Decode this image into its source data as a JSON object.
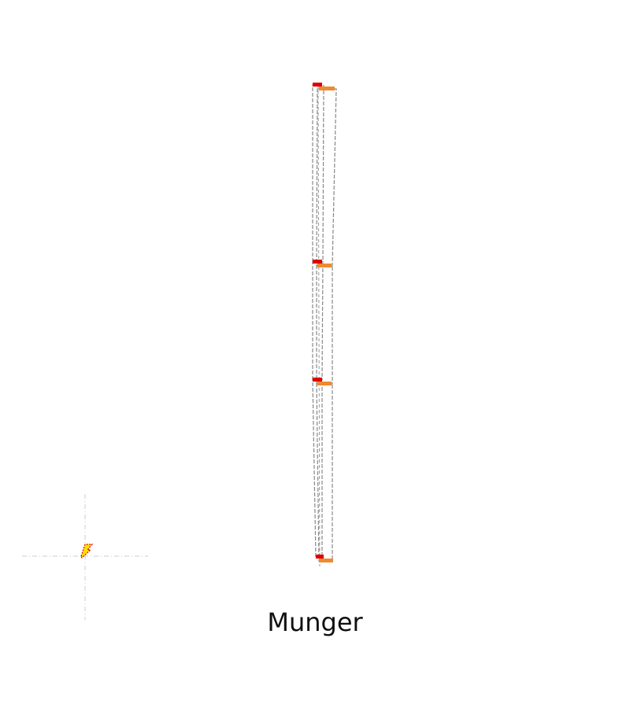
{
  "caption": "Munger",
  "colors": {
    "background": "#ffffff",
    "outline_dashed": "#888888",
    "marker_primary": "#e00000",
    "marker_secondary": "#f08a30",
    "origin_marker_fill": "#ffe000",
    "origin_marker_stroke": "#e00000",
    "axis_guide": "#cccccc"
  },
  "diagram": {
    "levels": 4,
    "segments": 3,
    "origin_marker": "lightning-icon"
  }
}
